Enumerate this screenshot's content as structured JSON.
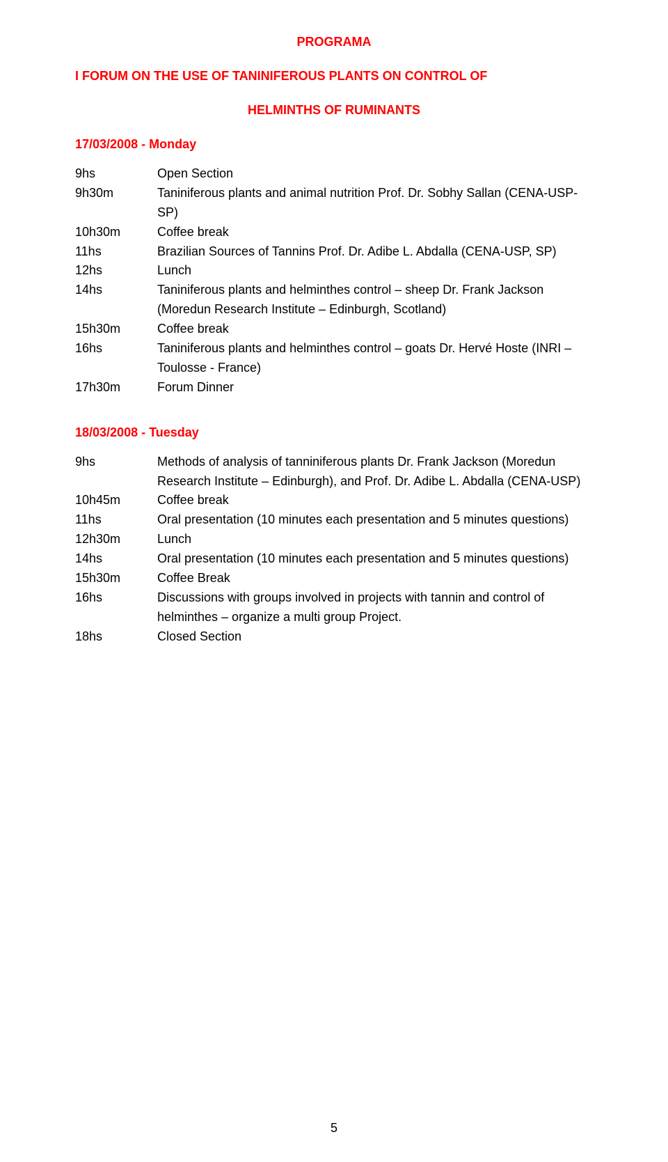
{
  "colors": {
    "text": "#000000",
    "heading": "#ff0000",
    "background": "#ffffff"
  },
  "typography": {
    "font_family": "Verdana, Geneva, sans-serif",
    "body_size_pt": 13,
    "heading_weight": "bold",
    "line_height": 1.55
  },
  "title_main": "PROGRAMA",
  "title_line1": "I FORUM ON THE USE OF TANINIFEROUS PLANTS ON CONTROL OF",
  "title_line2": "HELMINTHS OF RUMINANTS",
  "day1": {
    "date": "17/03/2008 - Monday",
    "rows": [
      {
        "time": "9hs",
        "desc": "Open Section"
      },
      {
        "time": "9h30m",
        "desc": "Taniniferous plants and animal nutrition\nProf. Dr. Sobhy Sallan (CENA-USP-SP)"
      },
      {
        "time": "10h30m",
        "desc": "Coffee break"
      },
      {
        "time": "11hs",
        "desc": "Brazilian Sources of Tannins\nProf. Dr. Adibe L. Abdalla  (CENA-USP, SP)"
      },
      {
        "time": "12hs",
        "desc": "Lunch"
      },
      {
        "time": "14hs",
        "desc": "Taniniferous plants and helminthes control – sheep\nDr. Frank Jackson (Moredun Research Institute – Edinburgh, Scotland)"
      },
      {
        "time": "15h30m",
        "desc": "Coffee break"
      },
      {
        "time": "16hs",
        "desc": "Taniniferous plants and helminthes control – goats\nDr. Hervé Hoste (INRI – Toulosse - France)"
      },
      {
        "time": " 17h30m",
        "desc": "Forum Dinner"
      }
    ]
  },
  "day2": {
    "date": "18/03/2008 - Tuesday",
    "rows": [
      {
        "time": "9hs",
        "desc": "Methods of analysis of tanniniferous plants\nDr. Frank Jackson (Moredun Research Institute – Edinburgh), and Prof. Dr. Adibe L. Abdalla (CENA-USP)"
      },
      {
        "time": "10h45m",
        "desc": "Coffee break"
      },
      {
        "time": "11hs",
        "desc": "Oral presentation (10 minutes each presentation and 5 minutes questions)"
      },
      {
        "time": "12h30m",
        "desc": "Lunch"
      },
      {
        "time": "14hs",
        "desc": "Oral presentation (10 minutes each presentation and 5 minutes questions)"
      },
      {
        "time": " 15h30m",
        "desc": "Coffee Break"
      },
      {
        "time": " 16hs",
        "desc": "Discussions with groups involved in projects with tannin and control of helminthes – organize a multi group Project."
      },
      {
        "time": " 18hs",
        "desc": "Closed Section"
      }
    ]
  },
  "page_number": "5"
}
